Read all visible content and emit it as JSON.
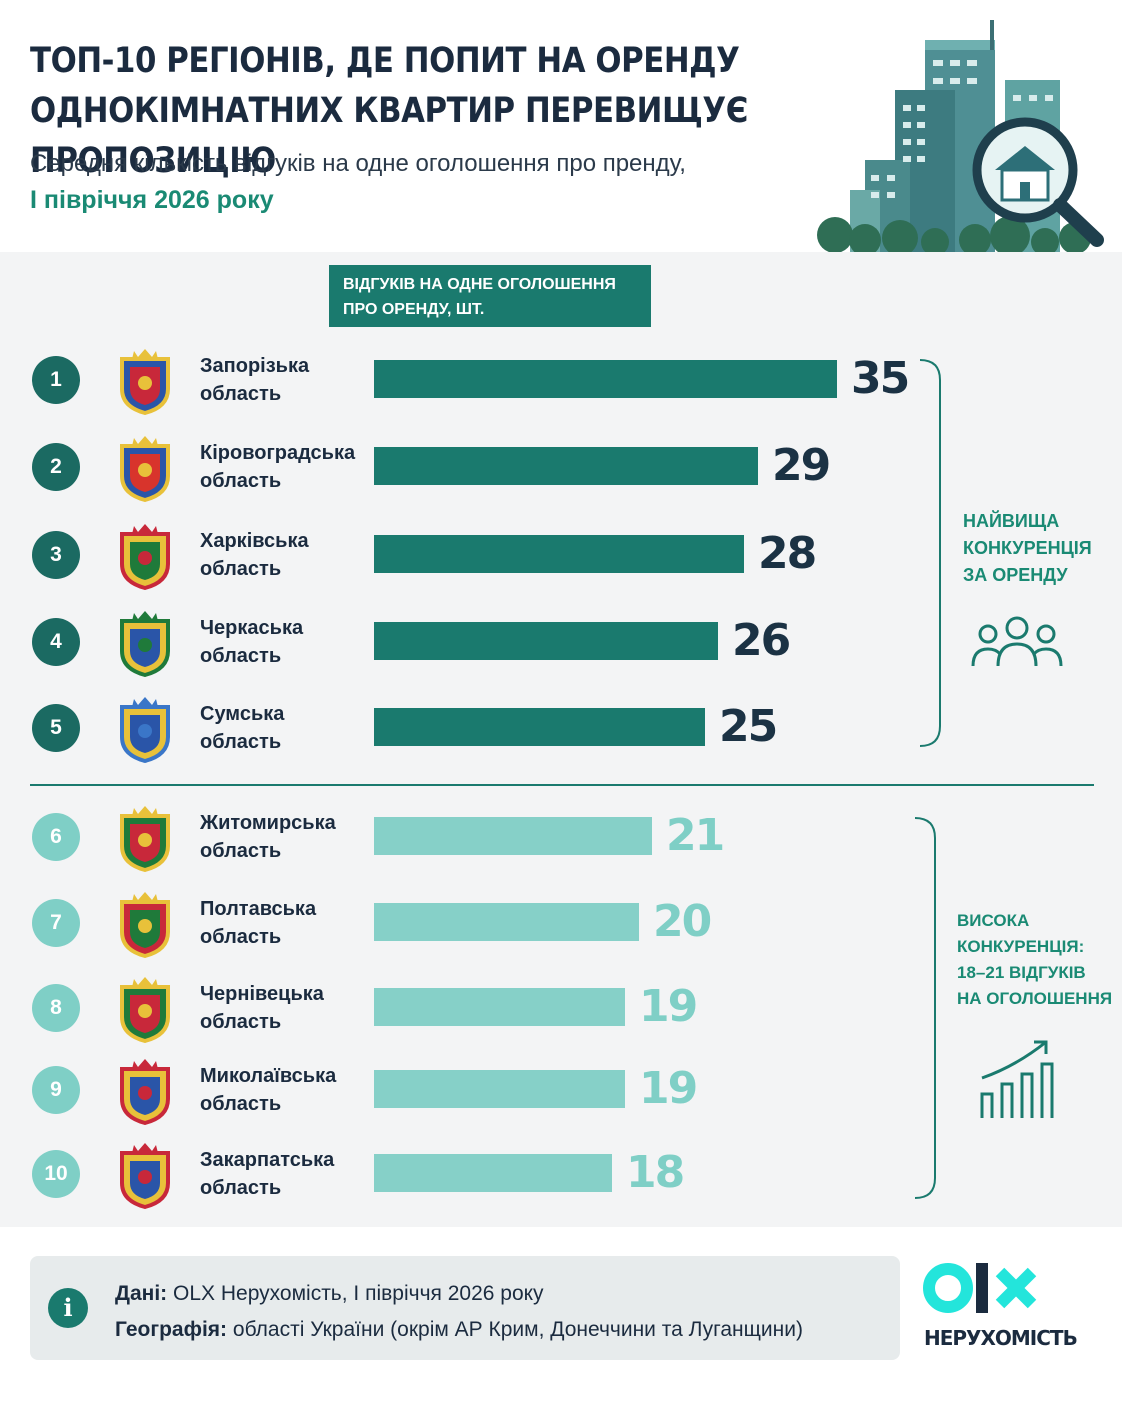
{
  "header": {
    "title": "ТОП-10 РЕГІОНІВ, ДЕ ПОПИТ НА ОРЕНДУ ОДНОКІМНАТНИХ КВАРТИР ПЕРЕВИЩУЄ ПРОПОЗИЦІЮ",
    "subtitle": "Середня кількість відгуків на одне оголошення про пренду,",
    "period": "І півріччя 2026 року"
  },
  "metric_label": "ВІДГУКІВ НА ОДНЕ ОГОЛОШЕННЯ ПРО ОРЕНДУ, ШТ.",
  "chart_data": {
    "type": "bar",
    "orientation": "horizontal",
    "categories": [
      "Запорізька область",
      "Кіровоградська область",
      "Харківська область",
      "Черкаська область",
      "Сумська область",
      "Житомирська область",
      "Полтавська область",
      "Чернівецька область",
      "Миколаївська область",
      "Закарпатська область"
    ],
    "ranks": [
      "1",
      "2",
      "3",
      "4",
      "5",
      "6",
      "7",
      "8",
      "9",
      "10"
    ],
    "values": [
      35,
      29,
      28,
      26,
      25,
      21,
      20,
      19,
      19,
      18
    ],
    "groups": [
      {
        "label": "НАЙВИЩА КОНКУРЕНЦІЯ ЗА ОРЕНДУ",
        "ranks": [
          1,
          2,
          3,
          4,
          5
        ],
        "color": "#1a7a6e",
        "icon": "people-icon"
      },
      {
        "label": "ВИСОКА КОНКУРЕНЦІЯ: 18–21 ВІДГУКІВ НА ОГОЛОШЕННЯ",
        "ranks": [
          6,
          7,
          8,
          9,
          10
        ],
        "color": "#86d0c8",
        "icon": "growth-chart-icon"
      }
    ],
    "crest_icons": [
      "zaporizhzhia-crest-icon",
      "kirovohrad-crest-icon",
      "kharkiv-crest-icon",
      "cherkasy-crest-icon",
      "sumy-crest-icon",
      "zhytomyr-crest-icon",
      "poltava-crest-icon",
      "chernivtsi-crest-icon",
      "mykolaiv-crest-icon",
      "zakarpattia-crest-icon"
    ]
  },
  "group_labels": {
    "top": [
      "НАЙВИЩА",
      "КОНКУРЕНЦІЯ",
      "ЗА ОРЕНДУ"
    ],
    "high": [
      "ВИСОКА",
      "КОНКУРЕНЦІЯ:",
      "18–21 ВІДГУКІВ",
      "НА ОГОЛОШЕННЯ"
    ]
  },
  "footer": {
    "data_label": "Дані:",
    "data_text": "OLX Нерухомість, І півріччя 2026 року",
    "geo_label": "Географія:",
    "geo_text": "області України (окрім АР Крим, Донеччини та Луганщини)",
    "info_icon": "i"
  },
  "logo": {
    "text": "olx",
    "subtitle": "НЕРУХОМІСТЬ"
  },
  "colors": {
    "dark_bar": "#1a7a6e",
    "light_bar": "#86d0c8",
    "accent_text": "#1a8a74",
    "panel_bg": "#f3f4f5"
  }
}
